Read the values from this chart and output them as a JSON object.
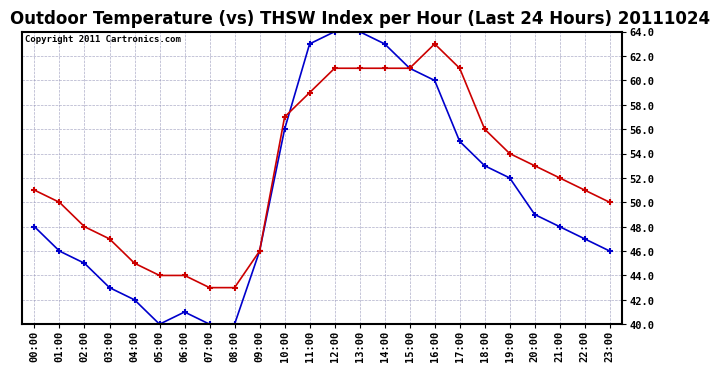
{
  "title": "Outdoor Temperature (vs) THSW Index per Hour (Last 24 Hours) 20111024",
  "copyright": "Copyright 2011 Cartronics.com",
  "hours": [
    0,
    1,
    2,
    3,
    4,
    5,
    6,
    7,
    8,
    9,
    10,
    11,
    12,
    13,
    14,
    15,
    16,
    17,
    18,
    19,
    20,
    21,
    22,
    23
  ],
  "hour_labels": [
    "00:00",
    "01:00",
    "02:00",
    "03:00",
    "04:00",
    "05:00",
    "06:00",
    "07:00",
    "08:00",
    "09:00",
    "10:00",
    "11:00",
    "12:00",
    "13:00",
    "14:00",
    "15:00",
    "16:00",
    "17:00",
    "18:00",
    "19:00",
    "20:00",
    "21:00",
    "22:00",
    "23:00"
  ],
  "temp_blue": [
    48,
    46,
    45,
    43,
    42,
    40,
    41,
    40,
    40,
    46,
    56,
    63,
    64,
    64,
    63,
    61,
    60,
    55,
    53,
    52,
    49,
    48,
    47,
    46
  ],
  "thsw_red": [
    51,
    50,
    48,
    47,
    45,
    44,
    44,
    43,
    43,
    46,
    57,
    59,
    61,
    61,
    61,
    61,
    63,
    61,
    56,
    54,
    53,
    52,
    51,
    50
  ],
  "ylim": [
    40.0,
    64.0
  ],
  "yticks": [
    40.0,
    42.0,
    44.0,
    46.0,
    48.0,
    50.0,
    52.0,
    54.0,
    56.0,
    58.0,
    60.0,
    62.0,
    64.0
  ],
  "blue_color": "#0000CC",
  "red_color": "#CC0000",
  "bg_color": "#FFFFFF",
  "grid_color": "#9999BB",
  "title_fontsize": 12,
  "tick_fontsize": 7.5,
  "copyright_fontsize": 6.5
}
